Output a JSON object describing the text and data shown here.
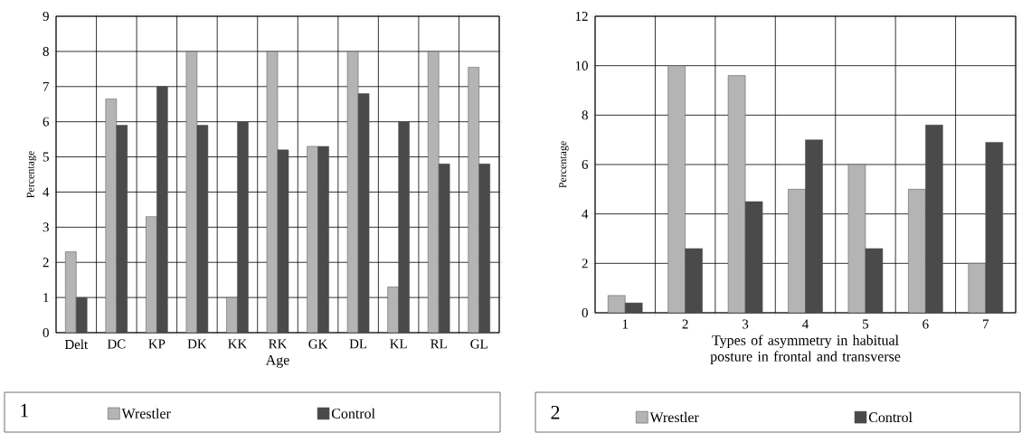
{
  "chart_data": [
    {
      "type": "bar",
      "title": "1",
      "xlabel": "Age",
      "ylabel": "Percentage",
      "categories": [
        "Delt",
        "DC",
        "KP",
        "DK",
        "KK",
        "RK",
        "GK",
        "DL",
        "KL",
        "RL",
        "GL"
      ],
      "series": [
        {
          "name": "Wrestler",
          "color": "#b4b4b4",
          "values": [
            2.3,
            6.65,
            3.3,
            8,
            1,
            8,
            5.3,
            8,
            1.3,
            8,
            7.55
          ]
        },
        {
          "name": "Control",
          "color": "#4a4a4a",
          "values": [
            1,
            5.9,
            7,
            5.9,
            6,
            5.2,
            5.3,
            6.8,
            6,
            4.8,
            4.8
          ]
        }
      ],
      "ylim": [
        0,
        9
      ],
      "yticks": [
        0,
        1,
        2,
        3,
        4,
        5,
        6,
        7,
        8,
        9
      ],
      "grid": true,
      "legend": "bottom"
    },
    {
      "type": "bar",
      "title": "2",
      "xlabel": "Types of asymmetry in habitual posture in frontal and transverse",
      "ylabel": "Percentage",
      "categories": [
        "1",
        "2",
        "3",
        "4",
        "5",
        "6",
        "7"
      ],
      "series": [
        {
          "name": "Wrestler",
          "color": "#b4b4b4",
          "values": [
            0.7,
            10,
            9.6,
            5,
            6,
            5,
            2
          ]
        },
        {
          "name": "Control",
          "color": "#4a4a4a",
          "values": [
            0.4,
            2.6,
            4.5,
            7,
            2.6,
            7.6,
            6.9
          ]
        }
      ],
      "ylim": [
        0,
        12
      ],
      "yticks": [
        0,
        2,
        4,
        6,
        8,
        10,
        12
      ],
      "grid": true,
      "legend": "bottom"
    }
  ]
}
